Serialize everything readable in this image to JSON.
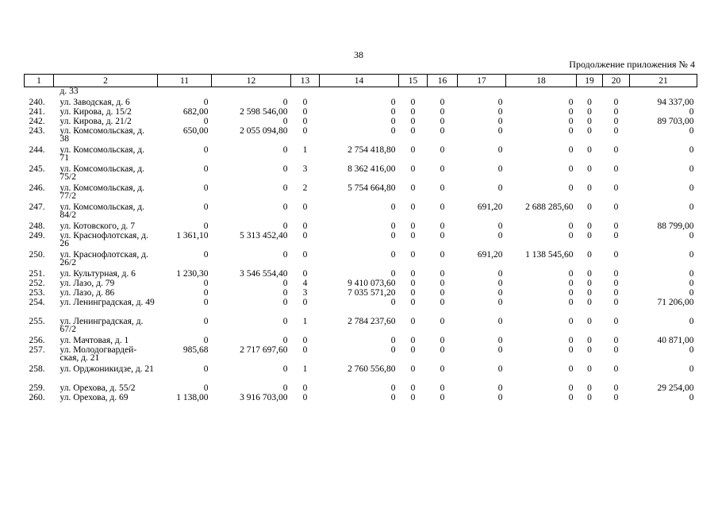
{
  "page_number": "38",
  "appendix_note": "Продолжение приложения № 4",
  "columns": [
    "1",
    "2",
    "11",
    "12",
    "13",
    "14",
    "15",
    "16",
    "17",
    "18",
    "19",
    "20",
    "21"
  ],
  "continuation_text": "д. 33",
  "rows": [
    {
      "num": "240.",
      "name": "ул. Заводская, д. 6",
      "c11": "0",
      "c12": "0",
      "c13": "0",
      "c14": "0",
      "c15": "0",
      "c16": "0",
      "c17": "0",
      "c18": "0",
      "c19": "0",
      "c20": "0",
      "c21": "94 337,00"
    },
    {
      "num": "241.",
      "name": "ул. Кирова, д. 15/2",
      "c11": "682,00",
      "c12": "2 598 546,00",
      "c13": "0",
      "c14": "0",
      "c15": "0",
      "c16": "0",
      "c17": "0",
      "c18": "0",
      "c19": "0",
      "c20": "0",
      "c21": "0"
    },
    {
      "num": "242.",
      "name": "ул. Кирова, д. 21/2",
      "c11": "0",
      "c12": "0",
      "c13": "0",
      "c14": "0",
      "c15": "0",
      "c16": "0",
      "c17": "0",
      "c18": "0",
      "c19": "0",
      "c20": "0",
      "c21": "89 703,00"
    },
    {
      "num": "243.",
      "name": "ул. Комсомольская, д. 38",
      "c11": "650,00",
      "c12": "2 055 094,80",
      "c13": "0",
      "c14": "0",
      "c15": "0",
      "c16": "0",
      "c17": "0",
      "c18": "0",
      "c19": "0",
      "c20": "0",
      "c21": "0"
    },
    {
      "num": "244.",
      "name": "ул. Комсомольская, д. 71",
      "c11": "0",
      "c12": "0",
      "c13": "1",
      "c14": "2 754 418,80",
      "c15": "0",
      "c16": "0",
      "c17": "0",
      "c18": "0",
      "c19": "0",
      "c20": "0",
      "c21": "0"
    },
    {
      "num": "245.",
      "name": "ул. Комсомольская, д. 75/2",
      "c11": "0",
      "c12": "0",
      "c13": "3",
      "c14": "8 362 416,00",
      "c15": "0",
      "c16": "0",
      "c17": "0",
      "c18": "0",
      "c19": "0",
      "c20": "0",
      "c21": "0"
    },
    {
      "num": "246.",
      "name": "ул. Комсомольская, д. 77/2",
      "c11": "0",
      "c12": "0",
      "c13": "2",
      "c14": "5 754 664,80",
      "c15": "0",
      "c16": "0",
      "c17": "0",
      "c18": "0",
      "c19": "0",
      "c20": "0",
      "c21": "0"
    },
    {
      "num": "247.",
      "name": "ул. Комсомольская, д. 84/2",
      "c11": "0",
      "c12": "0",
      "c13": "0",
      "c14": "0",
      "c15": "0",
      "c16": "0",
      "c17": "691,20",
      "c18": "2 688 285,60",
      "c19": "0",
      "c20": "0",
      "c21": "0"
    },
    {
      "num": "248.",
      "name": "ул. Котовского, д. 7",
      "c11": "0",
      "c12": "0",
      "c13": "0",
      "c14": "0",
      "c15": "0",
      "c16": "0",
      "c17": "0",
      "c18": "0",
      "c19": "0",
      "c20": "0",
      "c21": "88 799,00"
    },
    {
      "num": "249.",
      "name": "ул. Краснофлотская, д. 26",
      "c11": "1 361,10",
      "c12": "5 313 452,40",
      "c13": "0",
      "c14": "0",
      "c15": "0",
      "c16": "0",
      "c17": "0",
      "c18": "0",
      "c19": "0",
      "c20": "0",
      "c21": "0"
    },
    {
      "num": "250.",
      "name": "ул. Краснофлотская, д. 26/2",
      "c11": "0",
      "c12": "0",
      "c13": "0",
      "c14": "0",
      "c15": "0",
      "c16": "0",
      "c17": "691,20",
      "c18": "1 138 545,60",
      "c19": "0",
      "c20": "0",
      "c21": "0"
    },
    {
      "num": "251.",
      "name": "ул. Культурная, д. 6",
      "c11": "1 230,30",
      "c12": "3 546 554,40",
      "c13": "0",
      "c14": "0",
      "c15": "0",
      "c16": "0",
      "c17": "0",
      "c18": "0",
      "c19": "0",
      "c20": "0",
      "c21": "0"
    },
    {
      "num": "252.",
      "name": "ул. Лазо, д. 79",
      "c11": "0",
      "c12": "0",
      "c13": "4",
      "c14": "9 410 073,60",
      "c15": "0",
      "c16": "0",
      "c17": "0",
      "c18": "0",
      "c19": "0",
      "c20": "0",
      "c21": "0"
    },
    {
      "num": "253.",
      "name": "ул. Лазо, д. 86",
      "c11": "0",
      "c12": "0",
      "c13": "3",
      "c14": "7 035 571,20",
      "c15": "0",
      "c16": "0",
      "c17": "0",
      "c18": "0",
      "c19": "0",
      "c20": "0",
      "c21": "0"
    },
    {
      "num": "254.",
      "name": "ул. Ленинградская, д. 49",
      "c11": "0",
      "c12": "0",
      "c13": "0",
      "c14": "0",
      "c15": "0",
      "c16": "0",
      "c17": "0",
      "c18": "0",
      "c19": "0",
      "c20": "0",
      "c21": "71 206,00"
    },
    {
      "num": "255.",
      "name": "ул. Ленинградская, д. 67/2",
      "c11": "0",
      "c12": "0",
      "c13": "1",
      "c14": "2 784 237,60",
      "c15": "0",
      "c16": "0",
      "c17": "0",
      "c18": "0",
      "c19": "0",
      "c20": "0",
      "c21": "0"
    },
    {
      "num": "256.",
      "name": "ул. Мачтовая, д. 1",
      "c11": "0",
      "c12": "0",
      "c13": "0",
      "c14": "0",
      "c15": "0",
      "c16": "0",
      "c17": "0",
      "c18": "0",
      "c19": "0",
      "c20": "0",
      "c21": "40 871,00"
    },
    {
      "num": "257.",
      "name": "ул. Молодогвардей-ская, д. 21",
      "c11": "985,68",
      "c12": "2 717 697,60",
      "c13": "0",
      "c14": "0",
      "c15": "0",
      "c16": "0",
      "c17": "0",
      "c18": "0",
      "c19": "0",
      "c20": "0",
      "c21": "0"
    },
    {
      "num": "258.",
      "name": "ул. Орджоникидзе, д. 21",
      "c11": "0",
      "c12": "0",
      "c13": "1",
      "c14": "2 760 556,80",
      "c15": "0",
      "c16": "0",
      "c17": "0",
      "c18": "0",
      "c19": "0",
      "c20": "0",
      "c21": "0"
    },
    {
      "num": "259.",
      "name": "ул. Орехова, д. 55/2",
      "c11": "0",
      "c12": "0",
      "c13": "0",
      "c14": "0",
      "c15": "0",
      "c16": "0",
      "c17": "0",
      "c18": "0",
      "c19": "0",
      "c20": "0",
      "c21": "29 254,00"
    },
    {
      "num": "260.",
      "name": "ул. Орехова, д. 69",
      "c11": "1 138,00",
      "c12": "3 916 703,00",
      "c13": "0",
      "c14": "0",
      "c15": "0",
      "c16": "0",
      "c17": "0",
      "c18": "0",
      "c19": "0",
      "c20": "0",
      "c21": "0"
    }
  ]
}
